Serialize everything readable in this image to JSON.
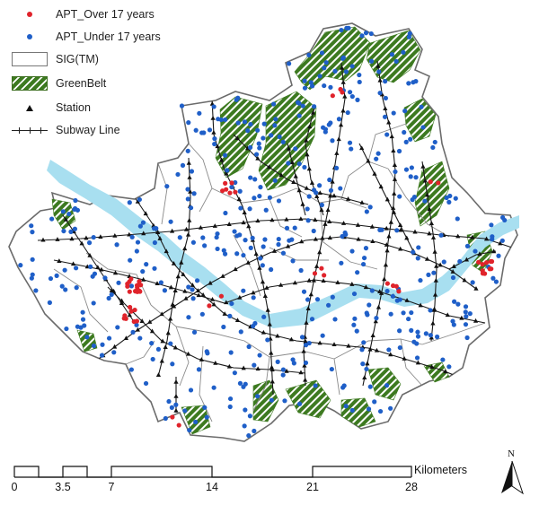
{
  "legend": {
    "apt_over": {
      "label": "APT_Over 17 years",
      "color": "#e0232b"
    },
    "apt_under": {
      "label": "APT_Under 17 years",
      "color": "#1f5fc8"
    },
    "sig": {
      "label": "SIG(TM)"
    },
    "greenbelt": {
      "label": "GreenBelt",
      "color": "#3d7a20"
    },
    "station": {
      "label": "Station"
    },
    "subway": {
      "label": "Subway Line"
    }
  },
  "scale": {
    "ticks": [
      "0",
      "3.5",
      "7",
      "14",
      "21",
      "28"
    ],
    "unit": "Kilometers"
  },
  "north": {
    "label": "N"
  },
  "colors": {
    "river": "#a8dff0",
    "boundary": "#7a7a7a",
    "land": "#ffffff"
  }
}
